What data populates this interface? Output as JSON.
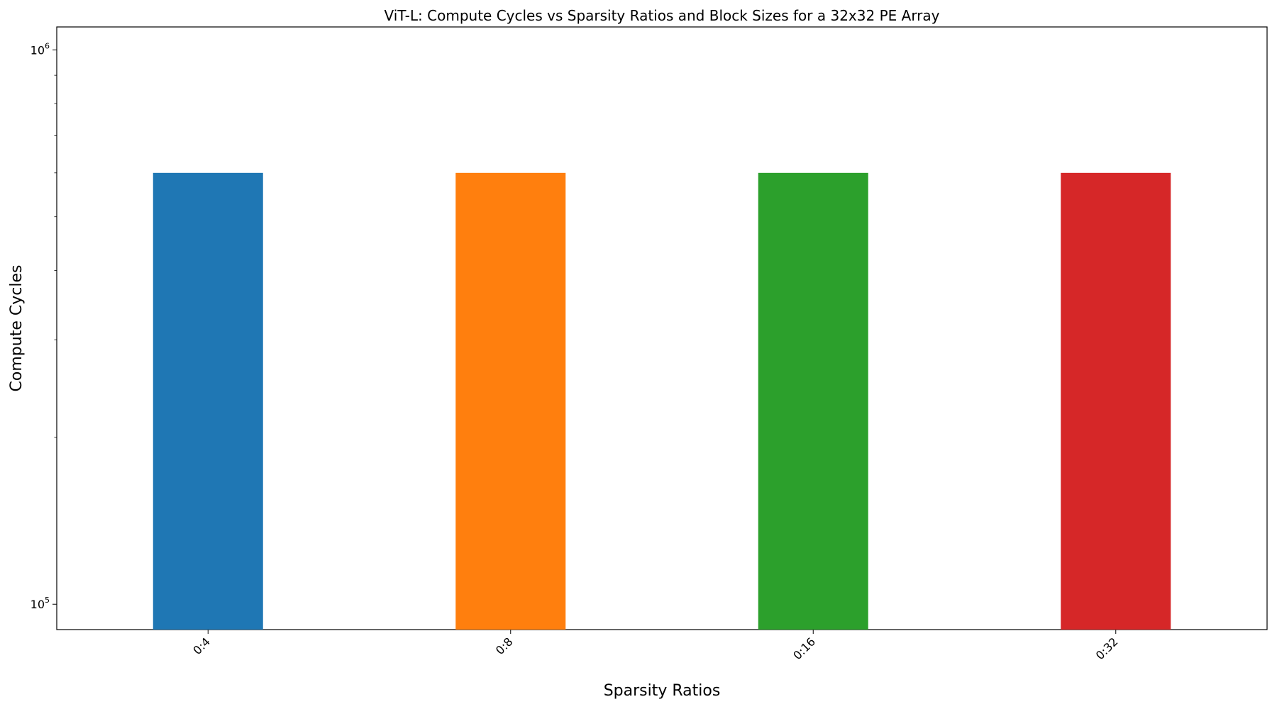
{
  "chart_data": {
    "type": "bar",
    "title": "ViT-L: Compute Cycles vs Sparsity Ratios and Block Sizes for a 32x32 PE Array",
    "xlabel": "Sparsity Ratios",
    "ylabel": "Compute Cycles",
    "categories": [
      "0:4",
      "0:8",
      "0:16",
      "0:32"
    ],
    "values": [
      600000,
      600000,
      600000,
      600000
    ],
    "colors": [
      "#1f77b4",
      "#ff7f0e",
      "#2ca02c",
      "#d62728"
    ],
    "yscale": "log",
    "ylim": [
      90000,
      1100000
    ],
    "y_major_ticks": [
      {
        "value": 100000,
        "base": "10",
        "exp": "5"
      },
      {
        "value": 1000000,
        "base": "10",
        "exp": "6"
      }
    ],
    "y_minor_ticks": [
      200000,
      300000,
      400000,
      500000,
      600000,
      700000,
      800000,
      900000
    ],
    "grid": false,
    "legend": "none"
  }
}
